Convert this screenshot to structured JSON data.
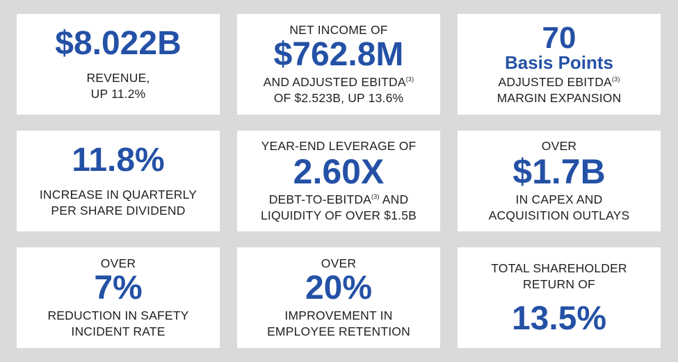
{
  "colors": {
    "accent": "#2451a6",
    "background": "#d9dadc",
    "card": "#ffffff"
  },
  "cards": [
    {
      "big": "$8.022B",
      "line1": "REVENUE,",
      "line2": "UP 11.2%"
    },
    {
      "pre": "NET INCOME OF",
      "big": "$762.8M",
      "line1": "AND ADJUSTED EBITDA",
      "line1_sup": "(3)",
      "line2": "OF $2.523B, UP 13.6%"
    },
    {
      "big": "70",
      "big2": "Basis Points",
      "line1": "ADJUSTED EBITDA",
      "line1_sup": "(3)",
      "line2": "MARGIN EXPANSION"
    },
    {
      "big": "11.8%",
      "line1": "INCREASE IN QUARTERLY",
      "line2": "PER SHARE DIVIDEND"
    },
    {
      "pre": "YEAR-END LEVERAGE OF",
      "big": "2.60X",
      "line1": "DEBT-TO-EBITDA",
      "line1_sup": "(3)",
      "line1_post": " AND",
      "line2": "LIQUIDITY OF OVER $1.5B"
    },
    {
      "pre": "OVER",
      "big": "$1.7B",
      "line1": "IN CAPEX AND",
      "line2": "ACQUISITION OUTLAYS"
    },
    {
      "pre": "OVER",
      "big": "7%",
      "line1": "REDUCTION IN SAFETY",
      "line2": "INCIDENT RATE"
    },
    {
      "pre": "OVER",
      "big": "20%",
      "line1": "IMPROVEMENT IN",
      "line2": "EMPLOYEE RETENTION"
    },
    {
      "pre": "TOTAL SHAREHOLDER",
      "pre2": "RETURN OF",
      "big": "13.5%"
    }
  ]
}
